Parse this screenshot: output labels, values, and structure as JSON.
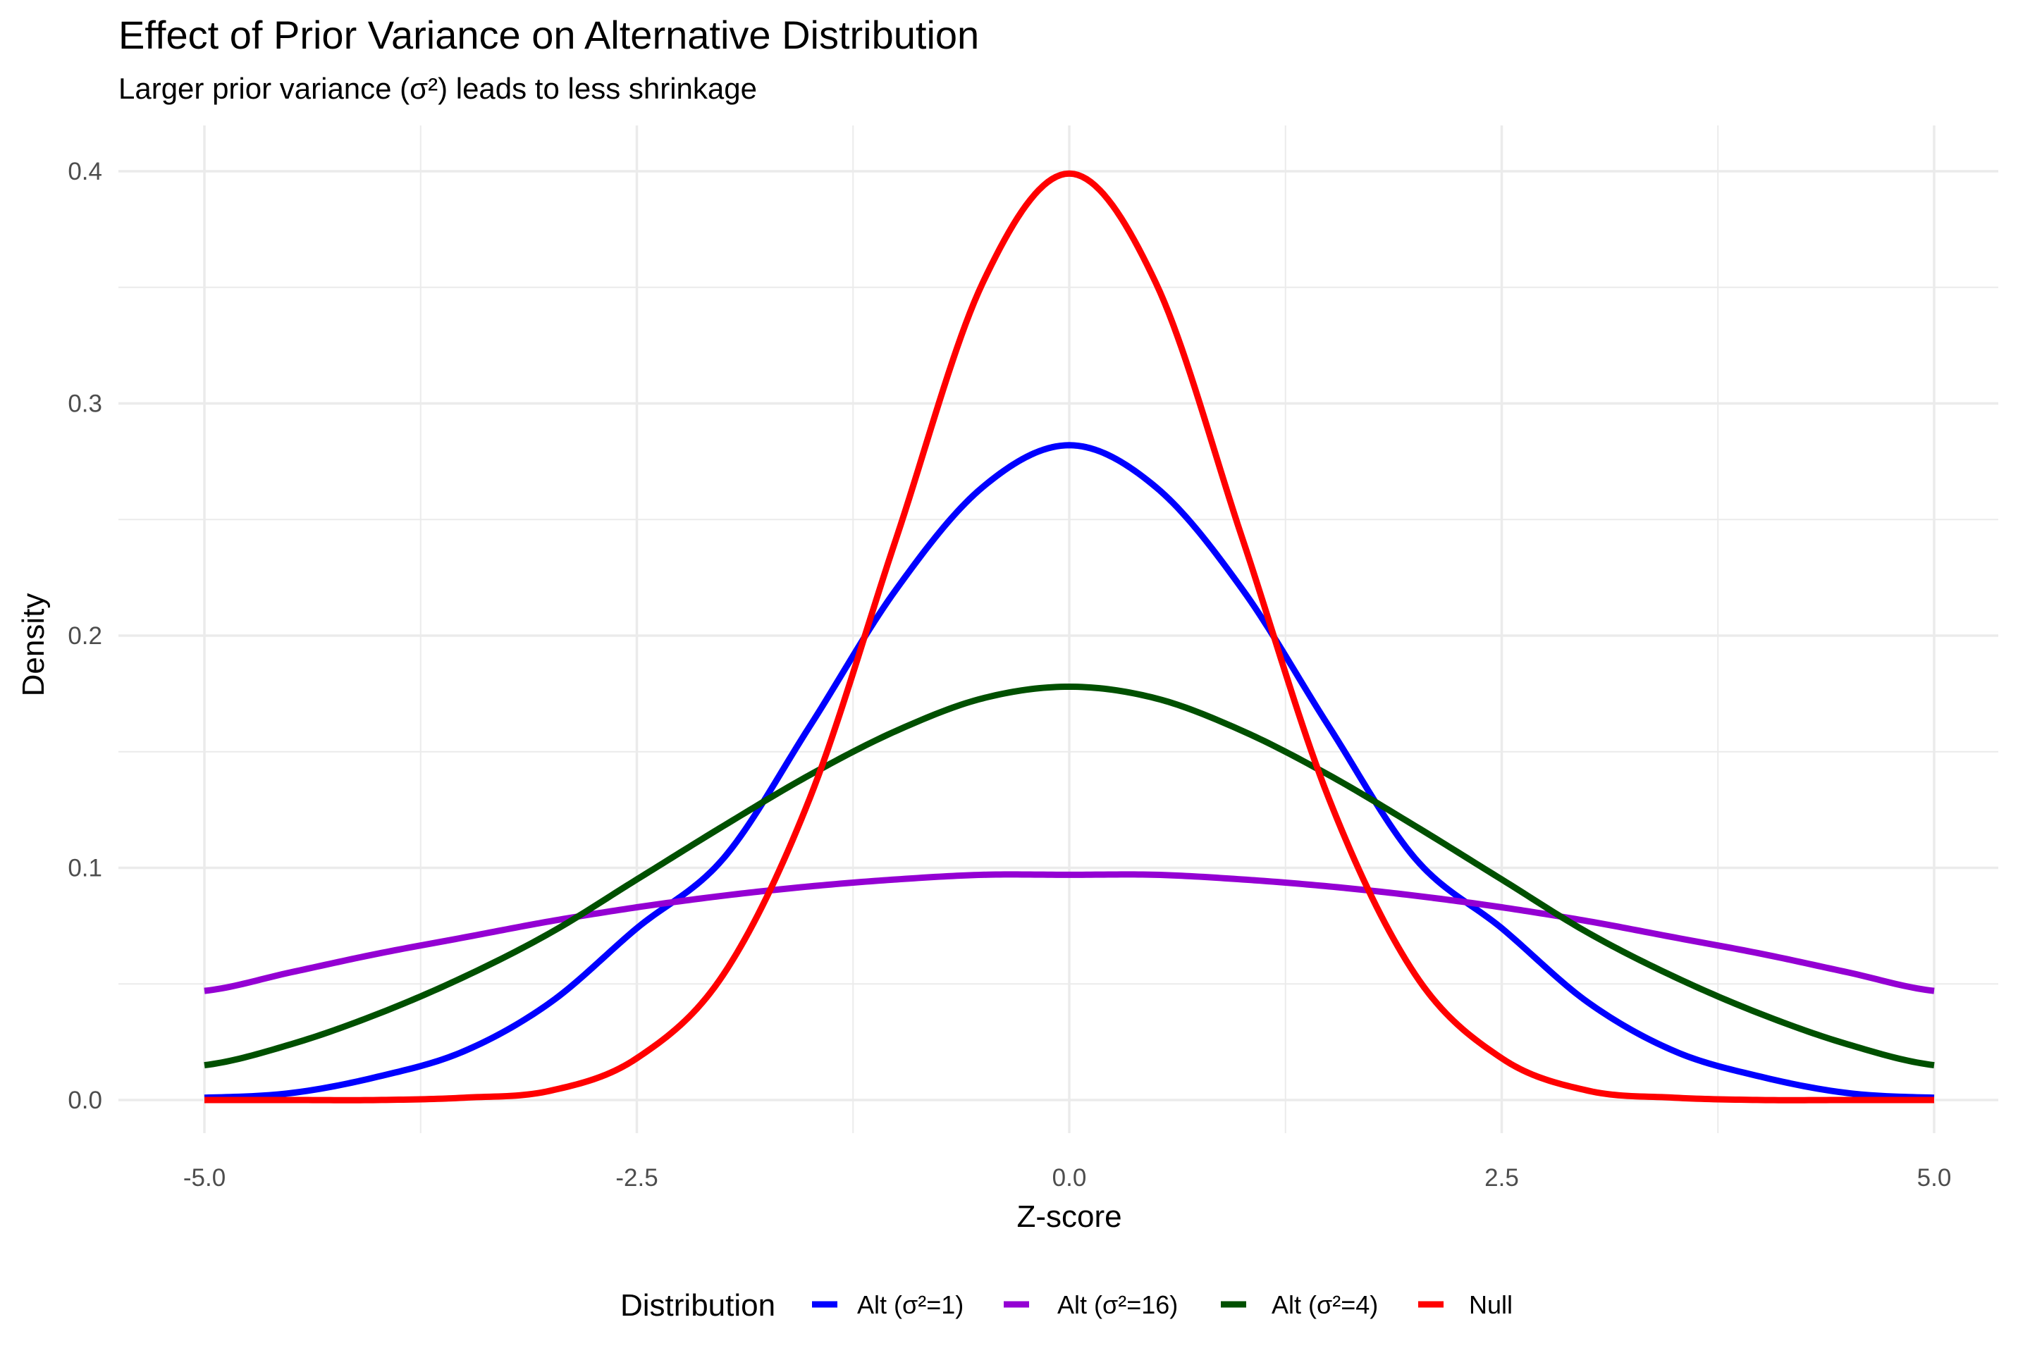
{
  "title": "Effect of Prior Variance on Alternative Distribution",
  "subtitle": "Larger prior variance (σ²) leads to less shrinkage",
  "chart_data": {
    "type": "line",
    "title": "Effect of Prior Variance on Alternative Distribution",
    "subtitle": "Larger prior variance (σ²) leads to less shrinkage",
    "xlabel": "Z-score",
    "ylabel": "Density",
    "xlim": [
      -5,
      5
    ],
    "ylim": [
      0,
      0.4
    ],
    "x_ticks": [
      -5.0,
      -2.5,
      0.0,
      2.5,
      5.0
    ],
    "x_tick_labels": [
      "-5.0",
      "-2.5",
      "0.0",
      "2.5",
      "5.0"
    ],
    "y_ticks": [
      0.0,
      0.1,
      0.2,
      0.3,
      0.4
    ],
    "y_tick_labels": [
      "0.0",
      "0.1",
      "0.2",
      "0.3",
      "0.4"
    ],
    "grid": true,
    "legend": {
      "title": "Distribution",
      "position": "bottom"
    },
    "x": [
      -5.0,
      -4.5,
      -4.0,
      -3.5,
      -3.0,
      -2.5,
      -2.0,
      -1.5,
      -1.0,
      -0.5,
      0.0,
      0.5,
      1.0,
      1.5,
      2.0,
      2.5,
      3.0,
      3.5,
      4.0,
      4.5,
      5.0
    ],
    "series": [
      {
        "name": "Alt (σ²=1)",
        "color": "#0000ff",
        "values": [
          0.001,
          0.003,
          0.01,
          0.021,
          0.042,
          0.074,
          0.104,
          0.161,
          0.22,
          0.264,
          0.282,
          0.264,
          0.22,
          0.161,
          0.104,
          0.074,
          0.042,
          0.021,
          0.01,
          0.003,
          0.001
        ]
      },
      {
        "name": "Alt (σ²=16)",
        "color": "#9400d3",
        "values": [
          0.047,
          0.055,
          0.063,
          0.07,
          0.077,
          0.083,
          0.088,
          0.092,
          0.095,
          0.097,
          0.097,
          0.097,
          0.095,
          0.092,
          0.088,
          0.083,
          0.077,
          0.07,
          0.063,
          0.055,
          0.047
        ]
      },
      {
        "name": "Alt (σ²=4)",
        "color": "#005000",
        "values": [
          0.015,
          0.024,
          0.037,
          0.053,
          0.072,
          0.095,
          0.118,
          0.14,
          0.159,
          0.173,
          0.178,
          0.173,
          0.159,
          0.14,
          0.118,
          0.095,
          0.072,
          0.053,
          0.037,
          0.024,
          0.015
        ]
      },
      {
        "name": "Null",
        "color": "#ff0000",
        "values": [
          0.0,
          0.0,
          0.0,
          0.001,
          0.004,
          0.018,
          0.054,
          0.13,
          0.242,
          0.352,
          0.399,
          0.352,
          0.242,
          0.13,
          0.054,
          0.018,
          0.004,
          0.001,
          0.0,
          0.0,
          0.0
        ]
      }
    ]
  }
}
